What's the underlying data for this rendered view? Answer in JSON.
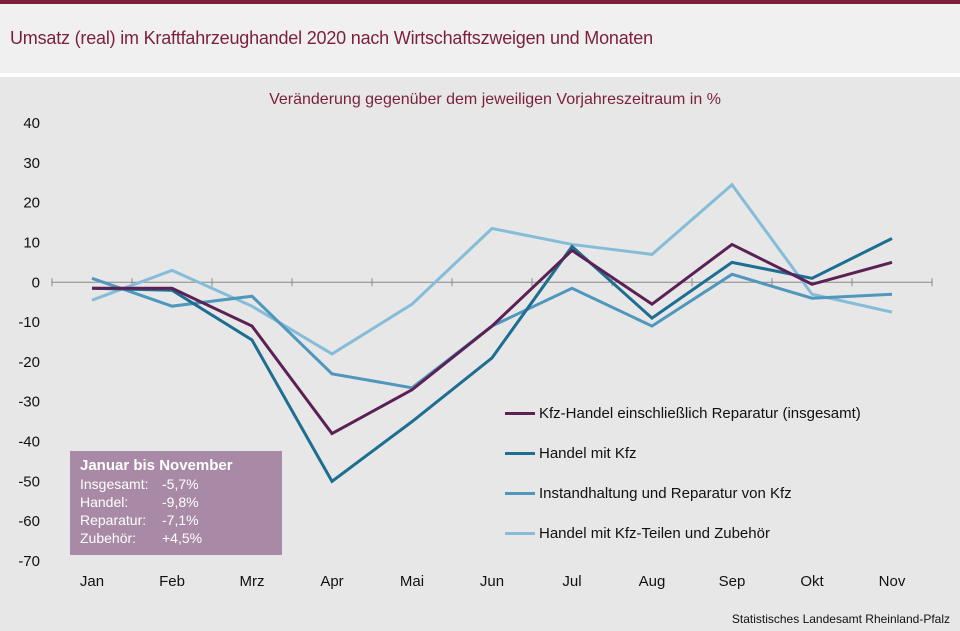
{
  "header": {
    "title": "Umsatz (real) im Kraftfahrzeughandel 2020 nach Wirtschaftszweigen und Monaten"
  },
  "chart_data": {
    "type": "line",
    "title": "Umsatz (real) im Kraftfahrzeughandel 2020 nach Wirtschaftszweigen und Monaten",
    "subtitle": "Veränderung  gegenüber  dem jeweiligen Vorjahreszeitraum  in %",
    "categories": [
      "Jan",
      "Feb",
      "Mrz",
      "Apr",
      "Mai",
      "Jun",
      "Jul",
      "Aug",
      "Sep",
      "Okt",
      "Nov"
    ],
    "ylim": [
      -70,
      40
    ],
    "yticks": [
      "40",
      "30",
      "20",
      "10",
      "0",
      "-10",
      "-20",
      "-30",
      "-40",
      "-50",
      "-60",
      "-70"
    ],
    "series": [
      {
        "name": "Kfz-Handel einschließlich Reparatur (insgesamt)",
        "color": "#5b2155",
        "values": [
          -1.5,
          -1.5,
          -11,
          -38,
          -27,
          -11,
          8,
          -5.5,
          9.5,
          -0.5,
          5
        ]
      },
      {
        "name": "Handel mit Kfz",
        "color": "#1e6e92",
        "values": [
          -1.5,
          -2,
          -14.5,
          -50,
          -35,
          -19,
          9,
          -9,
          5,
          1,
          11
        ]
      },
      {
        "name": "Instandhaltung und Reparatur von Kfz",
        "color": "#4f97bd",
        "values": [
          1,
          -6,
          -3.5,
          -23,
          -26.5,
          -11,
          -1.5,
          -11,
          2,
          -4,
          -3
        ]
      },
      {
        "name": "Handel mit Kfz-Teilen und Zubehör",
        "color": "#85bdd9",
        "values": [
          -4.5,
          3,
          -6,
          -18,
          -5.5,
          13.5,
          9.5,
          7,
          24.5,
          -3,
          -7.5
        ]
      }
    ],
    "legend_position": "bottom-right"
  },
  "infobox": {
    "title": "Januar bis November",
    "rows": [
      {
        "label": "Insgesamt:",
        "value": "-5,7%"
      },
      {
        "label": "Handel:",
        "value": "-9,8%"
      },
      {
        "label": "Reparatur:",
        "value": "-7,1%"
      },
      {
        "label": "Zubehör:",
        "value": "+4,5%"
      }
    ]
  },
  "source": "Statistisches Landesamt  Rheinland-Pfalz"
}
